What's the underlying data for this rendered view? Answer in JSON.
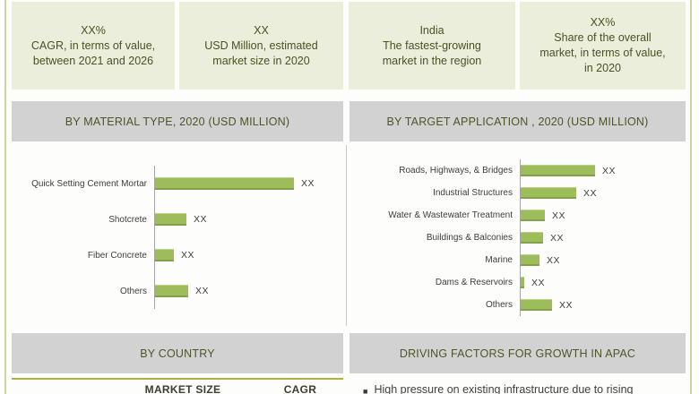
{
  "colors": {
    "bar_green": "#9cbd5a",
    "card_bg": "#eaeedb",
    "card_text": "#485323",
    "section_header_bg": "#d2d2d2",
    "section_header_text": "#4c5626",
    "frame_border": "#ccd5a1",
    "table_rule_olive": "#b2ae45",
    "axis_grey": "#a6a6a6"
  },
  "cards": [
    {
      "value": "XX%",
      "label": "CAGR, in terms of value,\nbetween 2021 and 2026"
    },
    {
      "value": "XX",
      "label": "USD Million, estimated\nmarket size in 2020"
    },
    {
      "value": "India",
      "label": "The fastest-growing\nmarket in the region"
    },
    {
      "value": "XX%",
      "label": "Share of the overall\nmarket, in terms of value,\nin 2020"
    }
  ],
  "sections": {
    "country_header": "BY COUNTRY",
    "driving_header": "DRIVING FACTORS FOR GROWTH IN APAC"
  },
  "country_table": {
    "columns": [
      "MARKET SIZE",
      "CAGR"
    ]
  },
  "driving_factors": {
    "bullets": [
      "High pressure on existing infrastructure due to rising"
    ]
  },
  "chart_data": [
    {
      "type": "bar",
      "orientation": "horizontal",
      "title": "BY MATERIAL TYPE, 2020 (USD MILLION)",
      "categories": [
        "Quick Setting Cement Mortar",
        "Shotcrete",
        "Fiber Concrete",
        "Others"
      ],
      "values": [
        155,
        35,
        21,
        37
      ],
      "value_labels": [
        "XX",
        "XX",
        "XX",
        "XX"
      ],
      "values_note": "actual figures masked as XX in source; values are relative bar lengths in px",
      "xlabel": "",
      "ylabel": "",
      "grid": false,
      "legend": "none",
      "bar_color": "#9cbd5a"
    },
    {
      "type": "bar",
      "orientation": "horizontal",
      "title": "BY TARGET APPLICATION , 2020 (USD MILLION)",
      "categories": [
        "Roads, Highways, & Bridges",
        "Industrial Structures",
        "Water & Wastewater Treatment",
        "Buildings & Balconies",
        "Marine",
        "Dams & Reservoirs",
        "Others"
      ],
      "values": [
        83,
        62,
        27,
        25,
        21,
        4,
        35
      ],
      "value_labels": [
        "XX",
        "XX",
        "XX",
        "XX",
        "XX",
        "XX",
        "XX"
      ],
      "values_note": "actual figures masked as XX in source; values are relative bar lengths in px",
      "xlabel": "",
      "ylabel": "",
      "grid": false,
      "legend": "none",
      "bar_color": "#9cbd5a"
    }
  ]
}
